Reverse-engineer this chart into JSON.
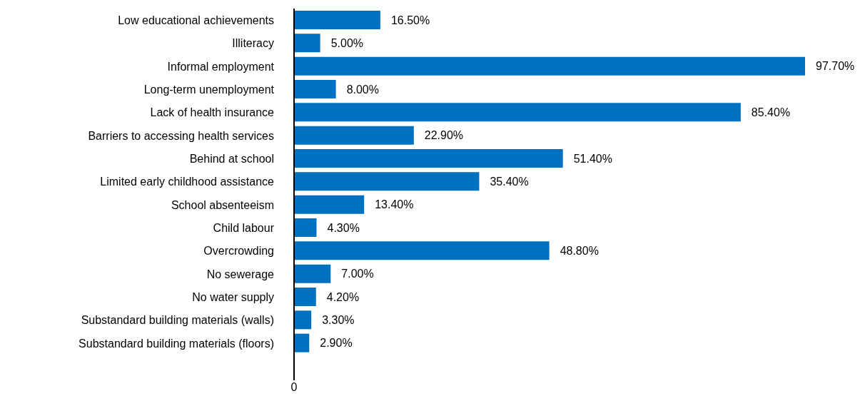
{
  "chart_data": {
    "type": "bar",
    "orientation": "horizontal",
    "categories": [
      "Low educational achievements",
      "Illiteracy",
      "Informal employment",
      "Long-term unemployment",
      "Lack of health insurance",
      "Barriers to accessing health services",
      "Behind at school",
      "Limited early childhood assistance",
      "School absenteeism",
      "Child labour",
      "Overcrowding",
      "No sewerage",
      "No water supply",
      "Substandard building materials (walls)",
      "Substandard building materials (floors)"
    ],
    "values": [
      16.5,
      5.0,
      97.7,
      8.0,
      85.4,
      22.9,
      51.4,
      35.4,
      13.4,
      4.3,
      48.8,
      7.0,
      4.2,
      3.3,
      2.9
    ],
    "value_labels": [
      "16.50%",
      "5.00%",
      "97.70%",
      "8.00%",
      "85.40%",
      "22.90%",
      "51.40%",
      "35.40%",
      "13.40%",
      "4.30%",
      "48.80%",
      "7.00%",
      "4.20%",
      "3.30%",
      "2.90%"
    ],
    "color": "#0070c0",
    "xlim": [
      0,
      97.7
    ],
    "annotations": [
      "0"
    ],
    "grid": false,
    "legend": false
  }
}
